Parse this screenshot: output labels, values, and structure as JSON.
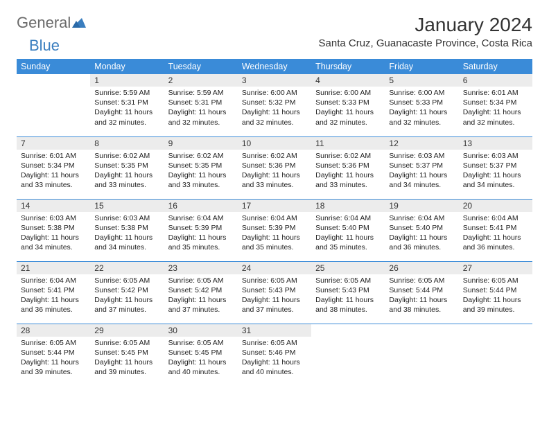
{
  "brand": {
    "part1": "General",
    "part2": "Blue"
  },
  "title": "January 2024",
  "location": "Santa Cruz, Guanacaste Province, Costa Rica",
  "colors": {
    "header_bg": "#3a8bd8",
    "header_fg": "#ffffff",
    "daynum_bg": "#ececec",
    "border": "#3a8bd8",
    "logo_gray": "#6a6a6a",
    "logo_blue": "#3a7ebf"
  },
  "weekdays": [
    "Sunday",
    "Monday",
    "Tuesday",
    "Wednesday",
    "Thursday",
    "Friday",
    "Saturday"
  ],
  "start_offset": 1,
  "days": [
    {
      "n": "1",
      "sr": "5:59 AM",
      "ss": "5:31 PM",
      "dl": "11 hours and 32 minutes."
    },
    {
      "n": "2",
      "sr": "5:59 AM",
      "ss": "5:31 PM",
      "dl": "11 hours and 32 minutes."
    },
    {
      "n": "3",
      "sr": "6:00 AM",
      "ss": "5:32 PM",
      "dl": "11 hours and 32 minutes."
    },
    {
      "n": "4",
      "sr": "6:00 AM",
      "ss": "5:33 PM",
      "dl": "11 hours and 32 minutes."
    },
    {
      "n": "5",
      "sr": "6:00 AM",
      "ss": "5:33 PM",
      "dl": "11 hours and 32 minutes."
    },
    {
      "n": "6",
      "sr": "6:01 AM",
      "ss": "5:34 PM",
      "dl": "11 hours and 32 minutes."
    },
    {
      "n": "7",
      "sr": "6:01 AM",
      "ss": "5:34 PM",
      "dl": "11 hours and 33 minutes."
    },
    {
      "n": "8",
      "sr": "6:02 AM",
      "ss": "5:35 PM",
      "dl": "11 hours and 33 minutes."
    },
    {
      "n": "9",
      "sr": "6:02 AM",
      "ss": "5:35 PM",
      "dl": "11 hours and 33 minutes."
    },
    {
      "n": "10",
      "sr": "6:02 AM",
      "ss": "5:36 PM",
      "dl": "11 hours and 33 minutes."
    },
    {
      "n": "11",
      "sr": "6:02 AM",
      "ss": "5:36 PM",
      "dl": "11 hours and 33 minutes."
    },
    {
      "n": "12",
      "sr": "6:03 AM",
      "ss": "5:37 PM",
      "dl": "11 hours and 34 minutes."
    },
    {
      "n": "13",
      "sr": "6:03 AM",
      "ss": "5:37 PM",
      "dl": "11 hours and 34 minutes."
    },
    {
      "n": "14",
      "sr": "6:03 AM",
      "ss": "5:38 PM",
      "dl": "11 hours and 34 minutes."
    },
    {
      "n": "15",
      "sr": "6:03 AM",
      "ss": "5:38 PM",
      "dl": "11 hours and 34 minutes."
    },
    {
      "n": "16",
      "sr": "6:04 AM",
      "ss": "5:39 PM",
      "dl": "11 hours and 35 minutes."
    },
    {
      "n": "17",
      "sr": "6:04 AM",
      "ss": "5:39 PM",
      "dl": "11 hours and 35 minutes."
    },
    {
      "n": "18",
      "sr": "6:04 AM",
      "ss": "5:40 PM",
      "dl": "11 hours and 35 minutes."
    },
    {
      "n": "19",
      "sr": "6:04 AM",
      "ss": "5:40 PM",
      "dl": "11 hours and 36 minutes."
    },
    {
      "n": "20",
      "sr": "6:04 AM",
      "ss": "5:41 PM",
      "dl": "11 hours and 36 minutes."
    },
    {
      "n": "21",
      "sr": "6:04 AM",
      "ss": "5:41 PM",
      "dl": "11 hours and 36 minutes."
    },
    {
      "n": "22",
      "sr": "6:05 AM",
      "ss": "5:42 PM",
      "dl": "11 hours and 37 minutes."
    },
    {
      "n": "23",
      "sr": "6:05 AM",
      "ss": "5:42 PM",
      "dl": "11 hours and 37 minutes."
    },
    {
      "n": "24",
      "sr": "6:05 AM",
      "ss": "5:43 PM",
      "dl": "11 hours and 37 minutes."
    },
    {
      "n": "25",
      "sr": "6:05 AM",
      "ss": "5:43 PM",
      "dl": "11 hours and 38 minutes."
    },
    {
      "n": "26",
      "sr": "6:05 AM",
      "ss": "5:44 PM",
      "dl": "11 hours and 38 minutes."
    },
    {
      "n": "27",
      "sr": "6:05 AM",
      "ss": "5:44 PM",
      "dl": "11 hours and 39 minutes."
    },
    {
      "n": "28",
      "sr": "6:05 AM",
      "ss": "5:44 PM",
      "dl": "11 hours and 39 minutes."
    },
    {
      "n": "29",
      "sr": "6:05 AM",
      "ss": "5:45 PM",
      "dl": "11 hours and 39 minutes."
    },
    {
      "n": "30",
      "sr": "6:05 AM",
      "ss": "5:45 PM",
      "dl": "11 hours and 40 minutes."
    },
    {
      "n": "31",
      "sr": "6:05 AM",
      "ss": "5:46 PM",
      "dl": "11 hours and 40 minutes."
    }
  ],
  "labels": {
    "sunrise": "Sunrise:",
    "sunset": "Sunset:",
    "daylight": "Daylight:"
  }
}
